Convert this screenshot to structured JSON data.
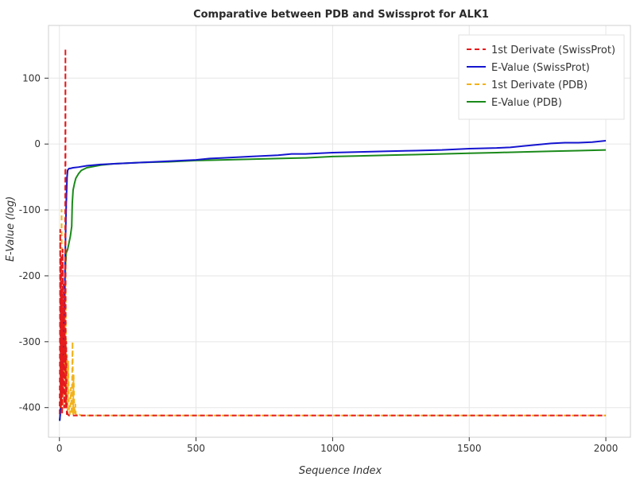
{
  "chart_data": {
    "type": "line",
    "title": "Comparative between PDB and Swissprot for ALK1",
    "xlabel": "Sequence Index",
    "ylabel": "E-Value (log)",
    "xlim": [
      -40,
      2090
    ],
    "ylim": [
      -445,
      180
    ],
    "xticks": [
      0,
      500,
      1000,
      1500,
      2000
    ],
    "yticks": [
      -400,
      -300,
      -200,
      -100,
      0,
      100
    ],
    "grid": true,
    "legend_position": "top-right",
    "series": [
      {
        "name": "1st Derivate (SwissProt)",
        "color": "#e41a1c",
        "style": "dashed",
        "x": [
          1,
          2,
          3,
          4,
          5,
          6,
          7,
          8,
          9,
          10,
          11,
          12,
          13,
          14,
          15,
          16,
          17,
          18,
          19,
          20,
          21,
          22,
          23,
          24,
          25,
          26,
          27,
          28,
          30,
          35,
          40,
          60,
          100,
          500,
          1000,
          1500,
          2000
        ],
        "y": [
          -410,
          -300,
          -130,
          -400,
          -250,
          -170,
          -390,
          -220,
          -280,
          -410,
          -300,
          -160,
          -380,
          -250,
          -210,
          -350,
          -230,
          -400,
          -280,
          -330,
          -200,
          145,
          -360,
          -400,
          -300,
          -380,
          -410,
          -405,
          -410,
          -412,
          -412,
          -412,
          -412,
          -412,
          -412,
          -412,
          -412
        ]
      },
      {
        "name": "E-Value (SwissProt)",
        "color": "#1515d0",
        "style": "solid",
        "x": [
          1,
          3,
          5,
          8,
          10,
          12,
          15,
          18,
          20,
          22,
          25,
          28,
          30,
          33,
          36,
          40,
          50,
          70,
          100,
          150,
          200,
          300,
          400,
          500,
          550,
          600,
          700,
          800,
          850,
          900,
          1000,
          1100,
          1200,
          1300,
          1400,
          1500,
          1600,
          1650,
          1700,
          1750,
          1800,
          1850,
          1900,
          1950,
          2000
        ],
        "y": [
          -420,
          -410,
          -400,
          -380,
          -360,
          -330,
          -300,
          -250,
          -200,
          -150,
          -90,
          -50,
          -40,
          -38,
          -37,
          -37,
          -36,
          -35,
          -33,
          -31,
          -30,
          -28,
          -26,
          -24,
          -22,
          -21,
          -19,
          -17,
          -15,
          -15,
          -13,
          -12,
          -11,
          -10,
          -9,
          -7,
          -6,
          -5,
          -3,
          -1,
          1,
          2,
          2,
          3,
          5
        ]
      },
      {
        "name": "1st Derivate (PDB)",
        "color": "#f2b21c",
        "style": "dashed",
        "x": [
          1,
          3,
          5,
          8,
          10,
          12,
          15,
          18,
          20,
          22,
          25,
          28,
          30,
          32,
          35,
          38,
          40,
          42,
          45,
          48,
          50,
          52,
          55,
          58,
          60,
          65,
          70,
          80,
          100,
          500,
          1000,
          1500,
          2000
        ],
        "y": [
          -410,
          -330,
          -400,
          -100,
          -380,
          -290,
          -400,
          -260,
          -350,
          -160,
          -400,
          -320,
          -410,
          -330,
          -400,
          -410,
          -400,
          -370,
          -410,
          -300,
          -410,
          -350,
          -410,
          -395,
          -410,
          -412,
          -410,
          -412,
          -412,
          -412,
          -412,
          -412,
          -412
        ]
      },
      {
        "name": "E-Value (PDB)",
        "color": "#1a8a1a",
        "style": "solid",
        "x": [
          1,
          3,
          5,
          8,
          10,
          12,
          15,
          18,
          20,
          22,
          25,
          30,
          35,
          40,
          45,
          47,
          50,
          55,
          60,
          70,
          80,
          100,
          150,
          200,
          300,
          400,
          500,
          600,
          700,
          800,
          900,
          1000,
          1100,
          1200,
          1300,
          1400,
          1500,
          1600,
          1700,
          1800,
          1900,
          2000
        ],
        "y": [
          -420,
          -410,
          -395,
          -380,
          -360,
          -340,
          -310,
          -270,
          -230,
          -190,
          -165,
          -160,
          -150,
          -140,
          -125,
          -90,
          -70,
          -60,
          -52,
          -45,
          -40,
          -36,
          -32,
          -30,
          -28,
          -27,
          -25,
          -24,
          -23,
          -22,
          -21,
          -19,
          -18,
          -17,
          -16,
          -15,
          -14,
          -13,
          -12,
          -11,
          -10,
          -9
        ]
      }
    ]
  }
}
